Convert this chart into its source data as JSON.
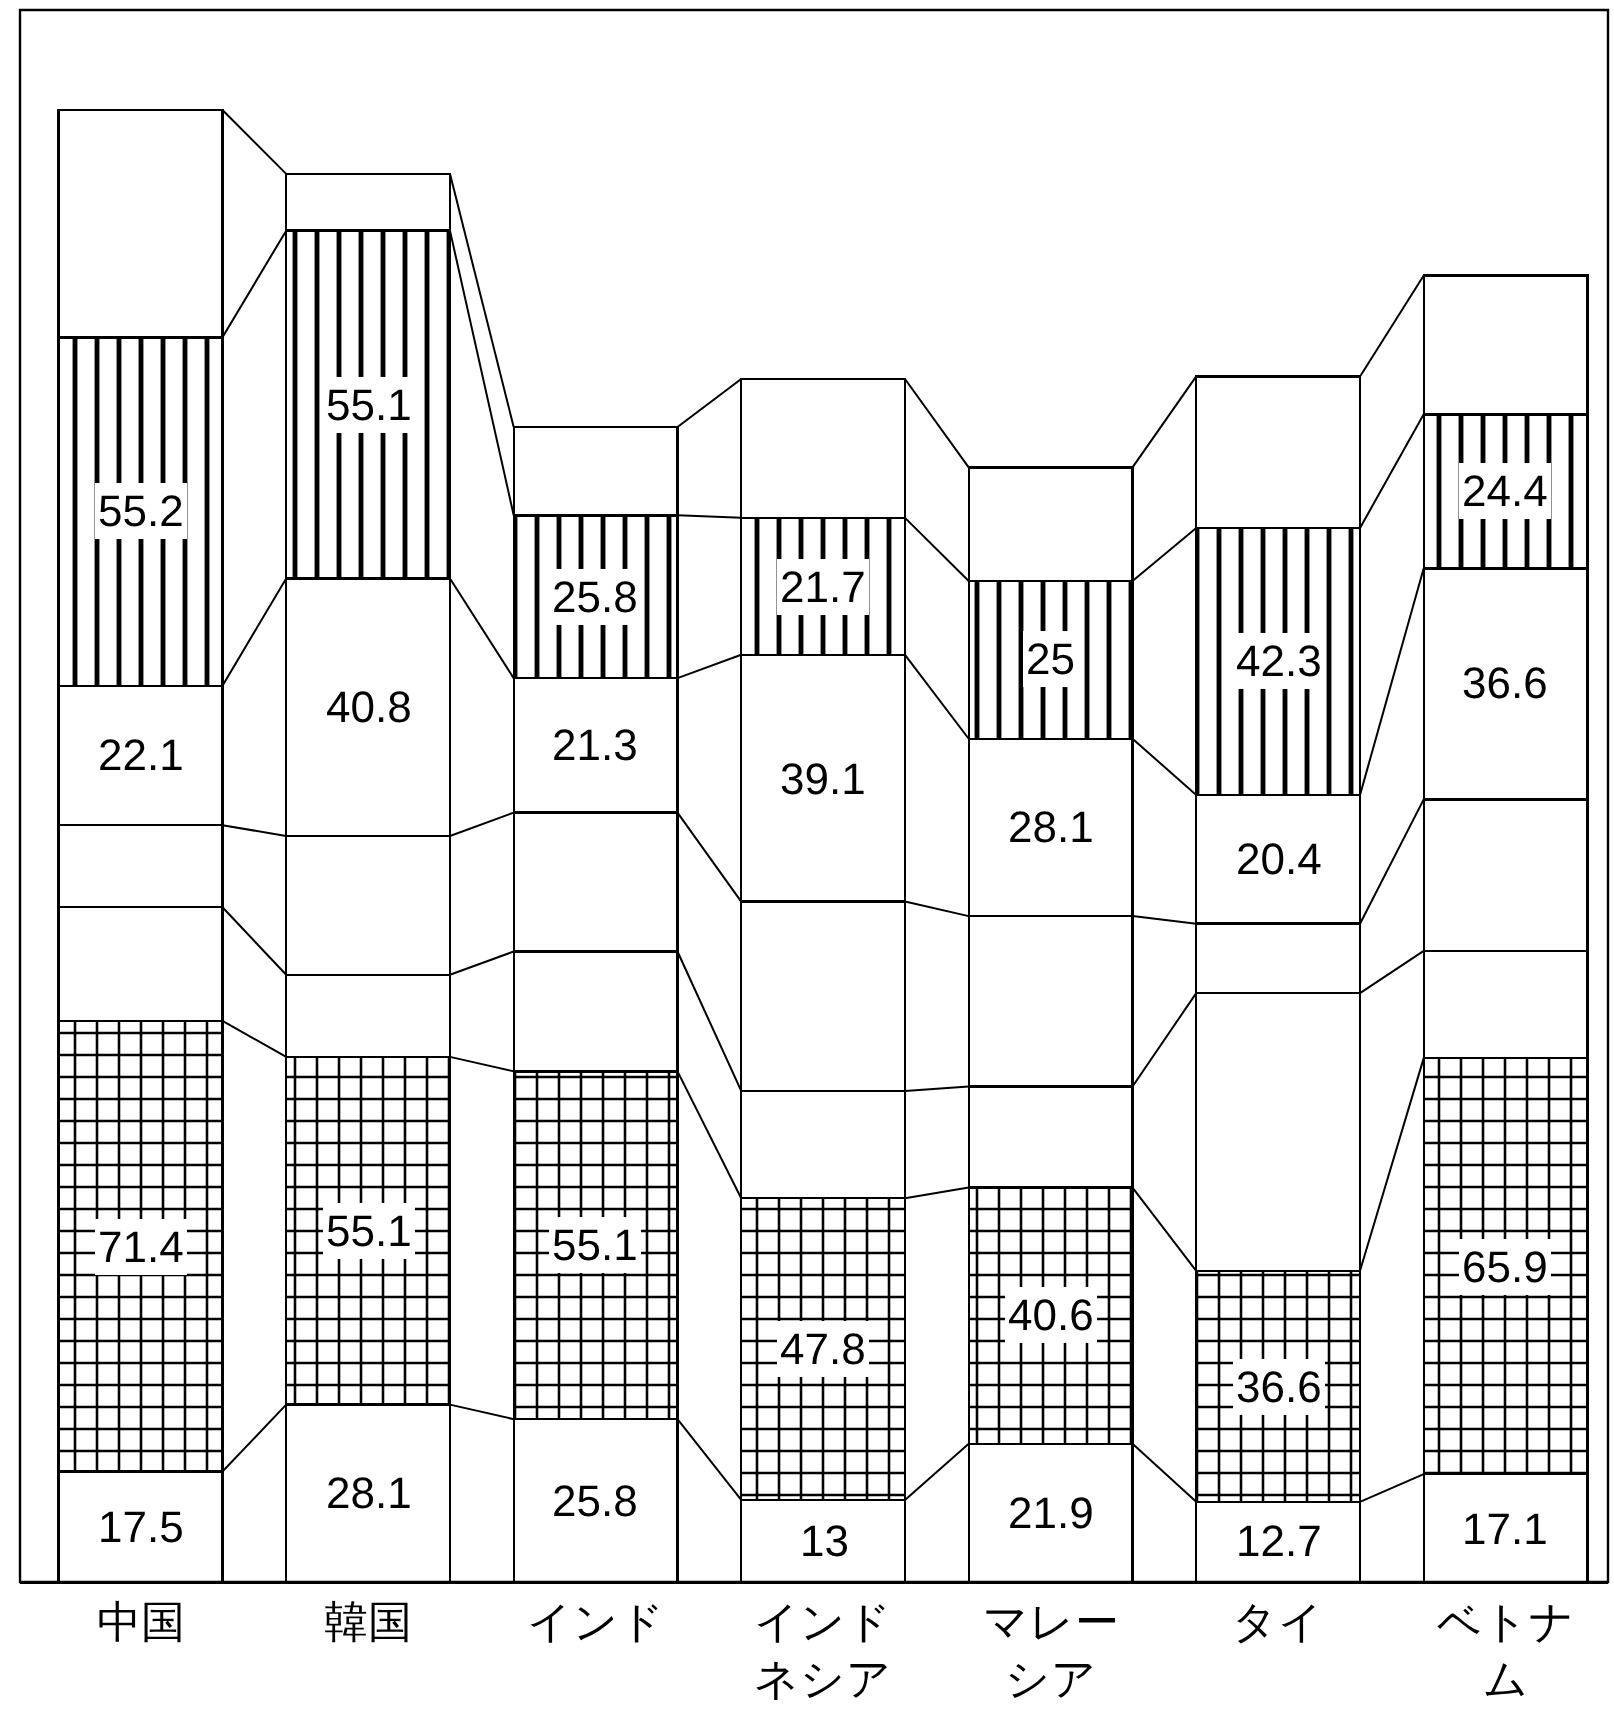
{
  "chart_data": {
    "type": "bar",
    "stacked": true,
    "categories": [
      "中国",
      "韓国",
      "インド",
      "インドネシア",
      "マレーシア",
      "タイ",
      "ベトナム"
    ],
    "series": [
      {
        "color": "#ffffff",
        "values": [
          17.5,
          28.1,
          25.8,
          13,
          21.9,
          12.7,
          17.1
        ],
        "value_labels": [
          "17.5",
          "28.1",
          "25.8",
          "13",
          "21.9",
          "12.7",
          "17.1"
        ]
      },
      {
        "color": "#000000",
        "values": [
          71.4,
          55.1,
          55.1,
          47.8,
          40.6,
          36.6,
          65.9
        ],
        "value_labels": [
          "71.4",
          "55.1",
          "55.1",
          "47.8",
          "40.6",
          "36.6",
          "65.9"
        ]
      },
      {
        "color": "#ffffff",
        "values": [
          18,
          13,
          19,
          17,
          16,
          44,
          17
        ]
      },
      {
        "color": "#ffffff",
        "values": [
          13,
          22,
          22,
          30,
          27,
          11,
          24
        ]
      },
      {
        "color": "#ffffff",
        "values": [
          22.1,
          40.8,
          21.3,
          39.1,
          28.1,
          20.4,
          36.6
        ],
        "value_labels": [
          "22.1",
          "40.8",
          "21.3",
          "39.1",
          "28.1",
          "20.4",
          "36.6"
        ]
      },
      {
        "color": "#000000",
        "values": [
          55.2,
          55.1,
          25.8,
          21.7,
          25,
          42.3,
          24.4
        ],
        "value_labels": [
          "55.2",
          "55.1",
          "25.8",
          "21.7",
          "25",
          "42.3",
          "24.4"
        ]
      },
      {
        "color": "#ffffff",
        "values": [
          36,
          9,
          14,
          22,
          18,
          24,
          22
        ]
      }
    ]
  }
}
